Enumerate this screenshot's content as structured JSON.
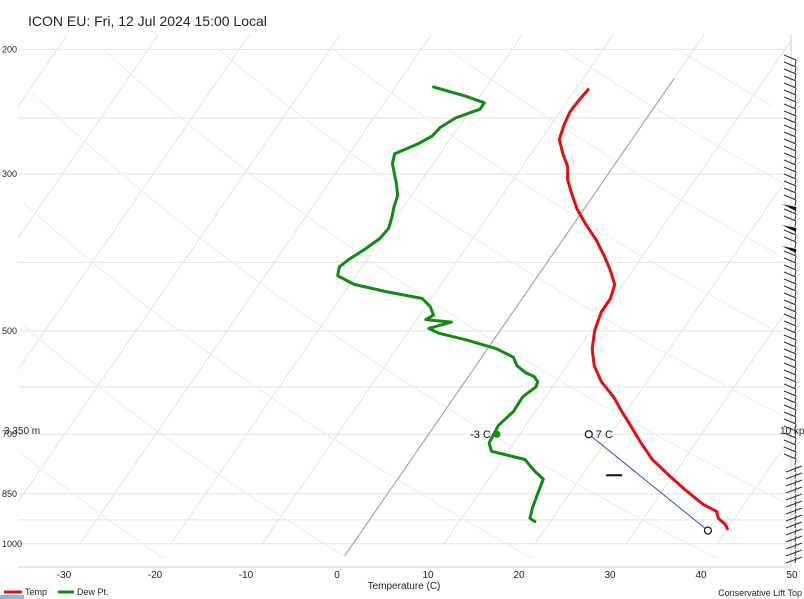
{
  "chart_data": {
    "type": "line",
    "title": "ICON EU: Fri, 12 Jul 2024 15:00 Local",
    "xlabel": "Temperature (C)",
    "ylabel": "",
    "xlim": [
      -35,
      50
    ],
    "ylim": [
      1000,
      200
    ],
    "y_scale": "log-pressure",
    "x_ticks": [
      -30,
      -20,
      -10,
      0,
      10,
      20,
      30,
      40,
      50
    ],
    "y_ticks": [
      {
        "p": 200,
        "label": "200"
      },
      {
        "p": 300,
        "label": "300"
      },
      {
        "p": 500,
        "label": "500"
      },
      {
        "p": 700,
        "label": "700"
      },
      {
        "p": 850,
        "label": "850"
      },
      {
        "p": 1000,
        "label": "1000"
      }
    ],
    "grid": true,
    "series": [
      {
        "name": "Temp",
        "color": "#e01010",
        "points": [
          [
            -8.6,
            228
          ],
          [
            -8.8,
            236
          ],
          [
            -8.9,
            245
          ],
          [
            -8.6,
            255
          ],
          [
            -8.0,
            268
          ],
          [
            -6.5,
            281
          ],
          [
            -5.0,
            293
          ],
          [
            -4.0,
            306
          ],
          [
            -2.5,
            320
          ],
          [
            -0.8,
            336
          ],
          [
            1.3,
            353
          ],
          [
            3.7,
            372
          ],
          [
            5.8,
            392
          ],
          [
            7.5,
            410
          ],
          [
            9.1,
            430
          ],
          [
            9.7,
            450
          ],
          [
            9.7,
            470
          ],
          [
            10.4,
            500
          ],
          [
            11.5,
            530
          ],
          [
            13.0,
            560
          ],
          [
            15.0,
            590
          ],
          [
            17.5,
            620
          ],
          [
            19.5,
            650
          ],
          [
            21.5,
            680
          ],
          [
            24.0,
            720
          ],
          [
            26.5,
            760
          ],
          [
            29.5,
            800
          ],
          [
            32.5,
            840
          ],
          [
            35.5,
            880
          ],
          [
            37.5,
            900
          ],
          [
            38.2,
            920
          ],
          [
            39.5,
            940
          ],
          [
            40.0,
            952
          ]
        ]
      },
      {
        "name": "Dew Pt.",
        "color": "#118a11",
        "points": [
          [
            -25.8,
            226
          ],
          [
            -21.5,
            233
          ],
          [
            -19.0,
            238
          ],
          [
            -19.0,
            243
          ],
          [
            -21.0,
            250
          ],
          [
            -22.0,
            258
          ],
          [
            -22.2,
            265
          ],
          [
            -23.2,
            272
          ],
          [
            -25.0,
            281
          ],
          [
            -24.5,
            290
          ],
          [
            -23.5,
            300
          ],
          [
            -22.5,
            310
          ],
          [
            -21.5,
            322
          ],
          [
            -21.0,
            335
          ],
          [
            -20.5,
            345
          ],
          [
            -20.0,
            358
          ],
          [
            -20.2,
            370
          ],
          [
            -21.0,
            383
          ],
          [
            -22.0,
            396
          ],
          [
            -22.5,
            406
          ],
          [
            -22.0,
            418
          ],
          [
            -19.5,
            430
          ],
          [
            -15.5,
            440
          ],
          [
            -11.0,
            450
          ],
          [
            -9.5,
            462
          ],
          [
            -8.5,
            475
          ],
          [
            -9.0,
            482
          ],
          [
            -6.0,
            486
          ],
          [
            -8.0,
            496
          ],
          [
            -6.5,
            504
          ],
          [
            -3.0,
            515
          ],
          [
            1.0,
            530
          ],
          [
            3.5,
            545
          ],
          [
            4.5,
            560
          ],
          [
            6.0,
            573
          ],
          [
            7.2,
            580
          ],
          [
            8.0,
            590
          ],
          [
            8.2,
            600
          ],
          [
            7.5,
            620
          ],
          [
            7.6,
            650
          ],
          [
            7.0,
            680
          ],
          [
            7.3,
            720
          ],
          [
            8.2,
            740
          ],
          [
            12.5,
            760
          ],
          [
            14.5,
            790
          ],
          [
            16.0,
            810
          ],
          [
            16.5,
            850
          ],
          [
            17.0,
            890
          ],
          [
            17.5,
            920
          ],
          [
            18.3,
            930
          ]
        ]
      }
    ],
    "annotations": [
      {
        "text": "-3 C",
        "marker": "dot",
        "color": "#118a11",
        "x": 7.5,
        "p": 700
      },
      {
        "text": "7 C",
        "marker": "circle",
        "color": "#111111",
        "x": 17.6,
        "p": 700
      },
      {
        "text": "",
        "marker": "circle",
        "color": "#111111",
        "x": 38.0,
        "p": 958
      }
    ],
    "lines": [
      {
        "name": "parcel",
        "color": "#3344dd",
        "from": {
          "x": 38.0,
          "p": 958
        },
        "to": {
          "x": 17.6,
          "p": 700
        }
      },
      {
        "name": "zero-isotherm",
        "color": "#999999",
        "from": {
          "x": 0,
          "p": 1040
        },
        "to": {
          "x": 0,
          "p": 220
        }
      }
    ],
    "left_label": "3,350 m",
    "right_label": "10 kp",
    "footer_right": "Conservative Lift Top",
    "legend": [
      {
        "name": "Temp",
        "color": "#e01010"
      },
      {
        "name": "Dew Pt.",
        "color": "#118a11"
      }
    ],
    "legend_position": "bottom-left"
  }
}
